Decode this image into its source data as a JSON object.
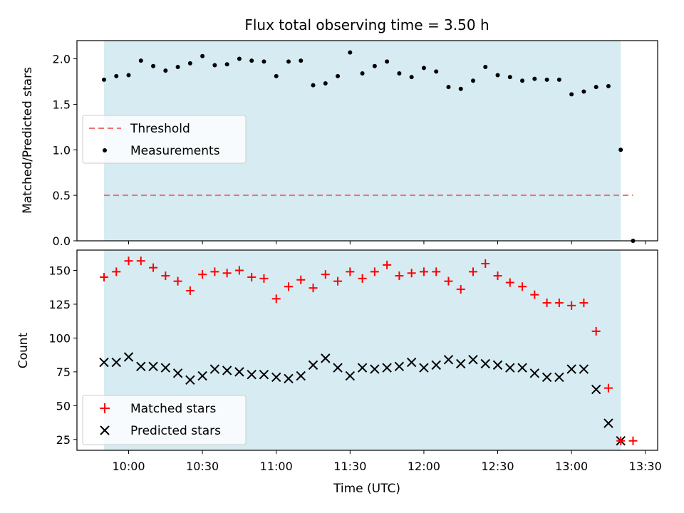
{
  "chart_data": [
    {
      "type": "scatter",
      "title": "Flux total observing time = 3.50 h",
      "ylabel": "Matched/Predicted stars",
      "xlabel": "",
      "ylim": [
        0.0,
        2.2
      ],
      "xlim": [
        "09:39",
        "13:35"
      ],
      "yticks": [
        "0.0",
        "0.5",
        "1.0",
        "1.5",
        "2.0"
      ],
      "grid": false,
      "legend_position": "center-left",
      "shaded_interval": [
        "09:50",
        "13:20"
      ],
      "threshold": {
        "name": "Threshold",
        "y": 0.5,
        "x_start": "09:50",
        "x_end": "13:25",
        "color": "#f07070"
      },
      "series": [
        {
          "name": "Measurements",
          "color": "#000000",
          "x": [
            "09:50",
            "09:55",
            "10:00",
            "10:05",
            "10:10",
            "10:15",
            "10:20",
            "10:25",
            "10:30",
            "10:35",
            "10:40",
            "10:45",
            "10:50",
            "10:55",
            "11:00",
            "11:05",
            "11:10",
            "11:15",
            "11:20",
            "11:25",
            "11:30",
            "11:35",
            "11:40",
            "11:45",
            "11:50",
            "11:55",
            "12:00",
            "12:05",
            "12:10",
            "12:15",
            "12:20",
            "12:25",
            "12:30",
            "12:35",
            "12:40",
            "12:45",
            "12:50",
            "12:55",
            "13:00",
            "13:05",
            "13:10",
            "13:15",
            "13:20",
            "13:25"
          ],
          "y": [
            1.77,
            1.81,
            1.82,
            1.98,
            1.92,
            1.87,
            1.91,
            1.95,
            2.03,
            1.93,
            1.94,
            2.0,
            1.98,
            1.97,
            1.81,
            1.97,
            1.98,
            1.71,
            1.73,
            1.81,
            2.07,
            1.84,
            1.92,
            1.97,
            1.84,
            1.8,
            1.9,
            1.86,
            1.69,
            1.67,
            1.76,
            1.91,
            1.82,
            1.8,
            1.76,
            1.78,
            1.77,
            1.77,
            1.61,
            1.64,
            1.69,
            1.7,
            1.0,
            0.0
          ]
        }
      ]
    },
    {
      "type": "scatter",
      "title": "",
      "ylabel": "Count",
      "xlabel": "Time (UTC)",
      "ylim": [
        17,
        165
      ],
      "xlim": [
        "09:39",
        "13:35"
      ],
      "xticks": [
        "10:00",
        "10:30",
        "11:00",
        "11:30",
        "12:00",
        "12:30",
        "13:00",
        "13:30"
      ],
      "yticks": [
        "25",
        "50",
        "75",
        "100",
        "125",
        "150"
      ],
      "grid": false,
      "legend_position": "bottom-left",
      "shaded_interval": [
        "09:50",
        "13:20"
      ],
      "series": [
        {
          "name": "Matched stars",
          "color": "#ff0000",
          "marker": "+",
          "x": [
            "09:50",
            "09:55",
            "10:00",
            "10:05",
            "10:10",
            "10:15",
            "10:20",
            "10:25",
            "10:30",
            "10:35",
            "10:40",
            "10:45",
            "10:50",
            "10:55",
            "11:00",
            "11:05",
            "11:10",
            "11:15",
            "11:20",
            "11:25",
            "11:30",
            "11:35",
            "11:40",
            "11:45",
            "11:50",
            "11:55",
            "12:00",
            "12:05",
            "12:10",
            "12:15",
            "12:20",
            "12:25",
            "12:30",
            "12:35",
            "12:40",
            "12:45",
            "12:50",
            "12:55",
            "13:00",
            "13:05",
            "13:10",
            "13:15",
            "13:20",
            "13:25"
          ],
          "y": [
            145,
            149,
            157,
            157,
            152,
            146,
            142,
            135,
            147,
            149,
            148,
            150,
            145,
            144,
            129,
            138,
            143,
            137,
            147,
            142,
            149,
            144,
            149,
            154,
            146,
            148,
            149,
            149,
            142,
            136,
            149,
            155,
            146,
            141,
            138,
            132,
            126,
            126,
            124,
            126,
            105,
            63,
            24,
            24
          ]
        },
        {
          "name": "Predicted stars",
          "color": "#000000",
          "marker": "x",
          "x": [
            "09:50",
            "09:55",
            "10:00",
            "10:05",
            "10:10",
            "10:15",
            "10:20",
            "10:25",
            "10:30",
            "10:35",
            "10:40",
            "10:45",
            "10:50",
            "10:55",
            "11:00",
            "11:05",
            "11:10",
            "11:15",
            "11:20",
            "11:25",
            "11:30",
            "11:35",
            "11:40",
            "11:45",
            "11:50",
            "11:55",
            "12:00",
            "12:05",
            "12:10",
            "12:15",
            "12:20",
            "12:25",
            "12:30",
            "12:35",
            "12:40",
            "12:45",
            "12:50",
            "12:55",
            "13:00",
            "13:05",
            "13:10",
            "13:15",
            "13:20"
          ],
          "y": [
            82,
            82,
            86,
            79,
            79,
            78,
            74,
            69,
            72,
            77,
            76,
            75,
            73,
            73,
            71,
            70,
            72,
            80,
            85,
            78,
            72,
            78,
            77,
            78,
            79,
            82,
            78,
            80,
            84,
            81,
            84,
            81,
            80,
            78,
            78,
            74,
            71,
            71,
            77,
            77,
            62,
            37,
            24
          ]
        }
      ]
    }
  ]
}
